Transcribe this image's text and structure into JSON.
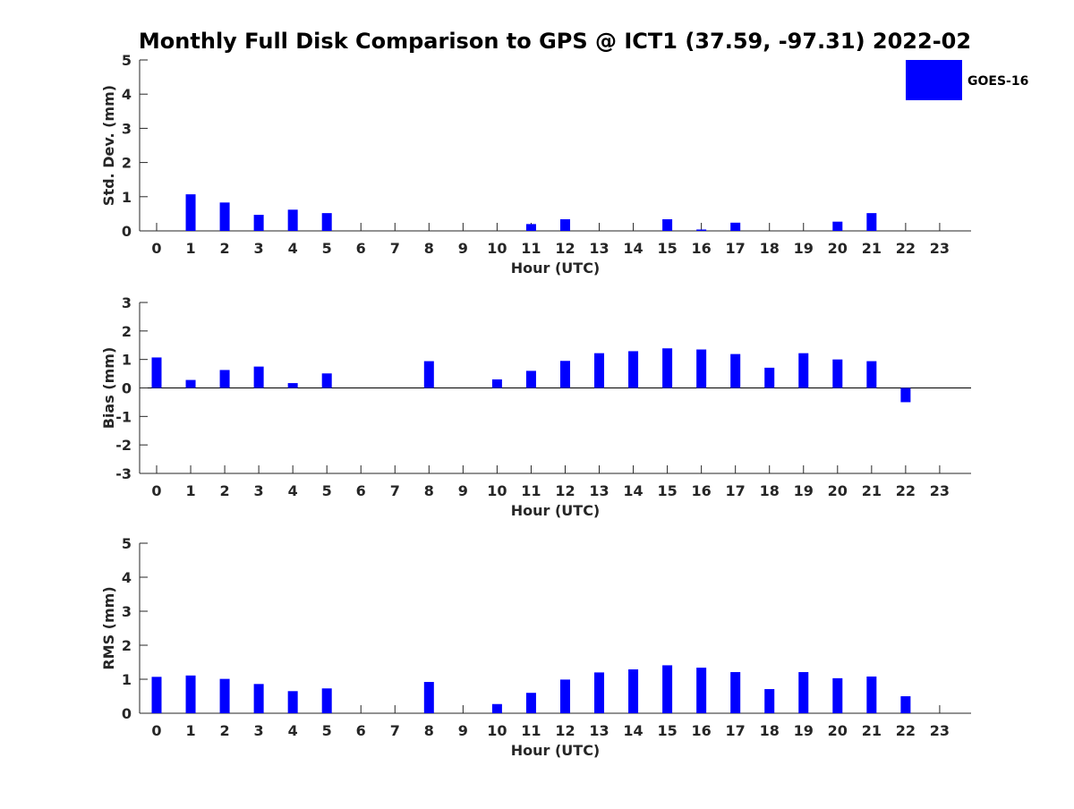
{
  "title": "Monthly Full Disk Comparison to GPS @ ICT1 (37.59, -97.31) 2022-02",
  "legend": {
    "label": "GOES-16",
    "color": "#0000ff"
  },
  "chart_data": [
    {
      "type": "bar",
      "ylabel": "Std. Dev. (mm)",
      "xlabel": "Hour (UTC)",
      "ylim": [
        0,
        5
      ],
      "yticks": [
        0,
        1,
        2,
        3,
        4,
        5
      ],
      "categories": [
        0,
        1,
        2,
        3,
        4,
        5,
        6,
        7,
        8,
        9,
        10,
        11,
        12,
        13,
        14,
        15,
        16,
        17,
        18,
        19,
        20,
        21,
        22,
        23
      ],
      "series": [
        {
          "name": "GOES-16",
          "values": [
            null,
            1.07,
            0.83,
            0.47,
            0.62,
            0.52,
            null,
            null,
            null,
            null,
            null,
            0.2,
            0.34,
            null,
            null,
            0.34,
            0.04,
            0.24,
            null,
            null,
            0.27,
            0.52,
            null,
            null
          ]
        }
      ]
    },
    {
      "type": "bar",
      "ylabel": "Bias (mm)",
      "xlabel": "Hour (UTC)",
      "ylim": [
        -3,
        3
      ],
      "yticks": [
        -3,
        -2,
        -1,
        0,
        1,
        2,
        3
      ],
      "zero_line": true,
      "categories": [
        0,
        1,
        2,
        3,
        4,
        5,
        6,
        7,
        8,
        9,
        10,
        11,
        12,
        13,
        14,
        15,
        16,
        17,
        18,
        19,
        20,
        21,
        22,
        23
      ],
      "series": [
        {
          "name": "GOES-16",
          "values": [
            1.07,
            0.28,
            0.63,
            0.75,
            0.17,
            0.51,
            null,
            null,
            0.94,
            null,
            0.3,
            0.6,
            0.95,
            1.22,
            1.29,
            1.39,
            1.35,
            1.19,
            0.71,
            1.22,
            1.0,
            0.94,
            -0.5,
            null
          ]
        }
      ]
    },
    {
      "type": "bar",
      "ylabel": "RMS (mm)",
      "xlabel": "Hour (UTC)",
      "ylim": [
        0,
        5
      ],
      "yticks": [
        0,
        1,
        2,
        3,
        4,
        5
      ],
      "categories": [
        0,
        1,
        2,
        3,
        4,
        5,
        6,
        7,
        8,
        9,
        10,
        11,
        12,
        13,
        14,
        15,
        16,
        17,
        18,
        19,
        20,
        21,
        22,
        23
      ],
      "series": [
        {
          "name": "GOES-16",
          "values": [
            1.07,
            1.11,
            1.01,
            0.86,
            0.65,
            0.73,
            null,
            null,
            0.92,
            null,
            0.27,
            0.6,
            0.99,
            1.2,
            1.29,
            1.41,
            1.34,
            1.21,
            0.71,
            1.21,
            1.03,
            1.08,
            0.5,
            null
          ]
        }
      ]
    }
  ]
}
